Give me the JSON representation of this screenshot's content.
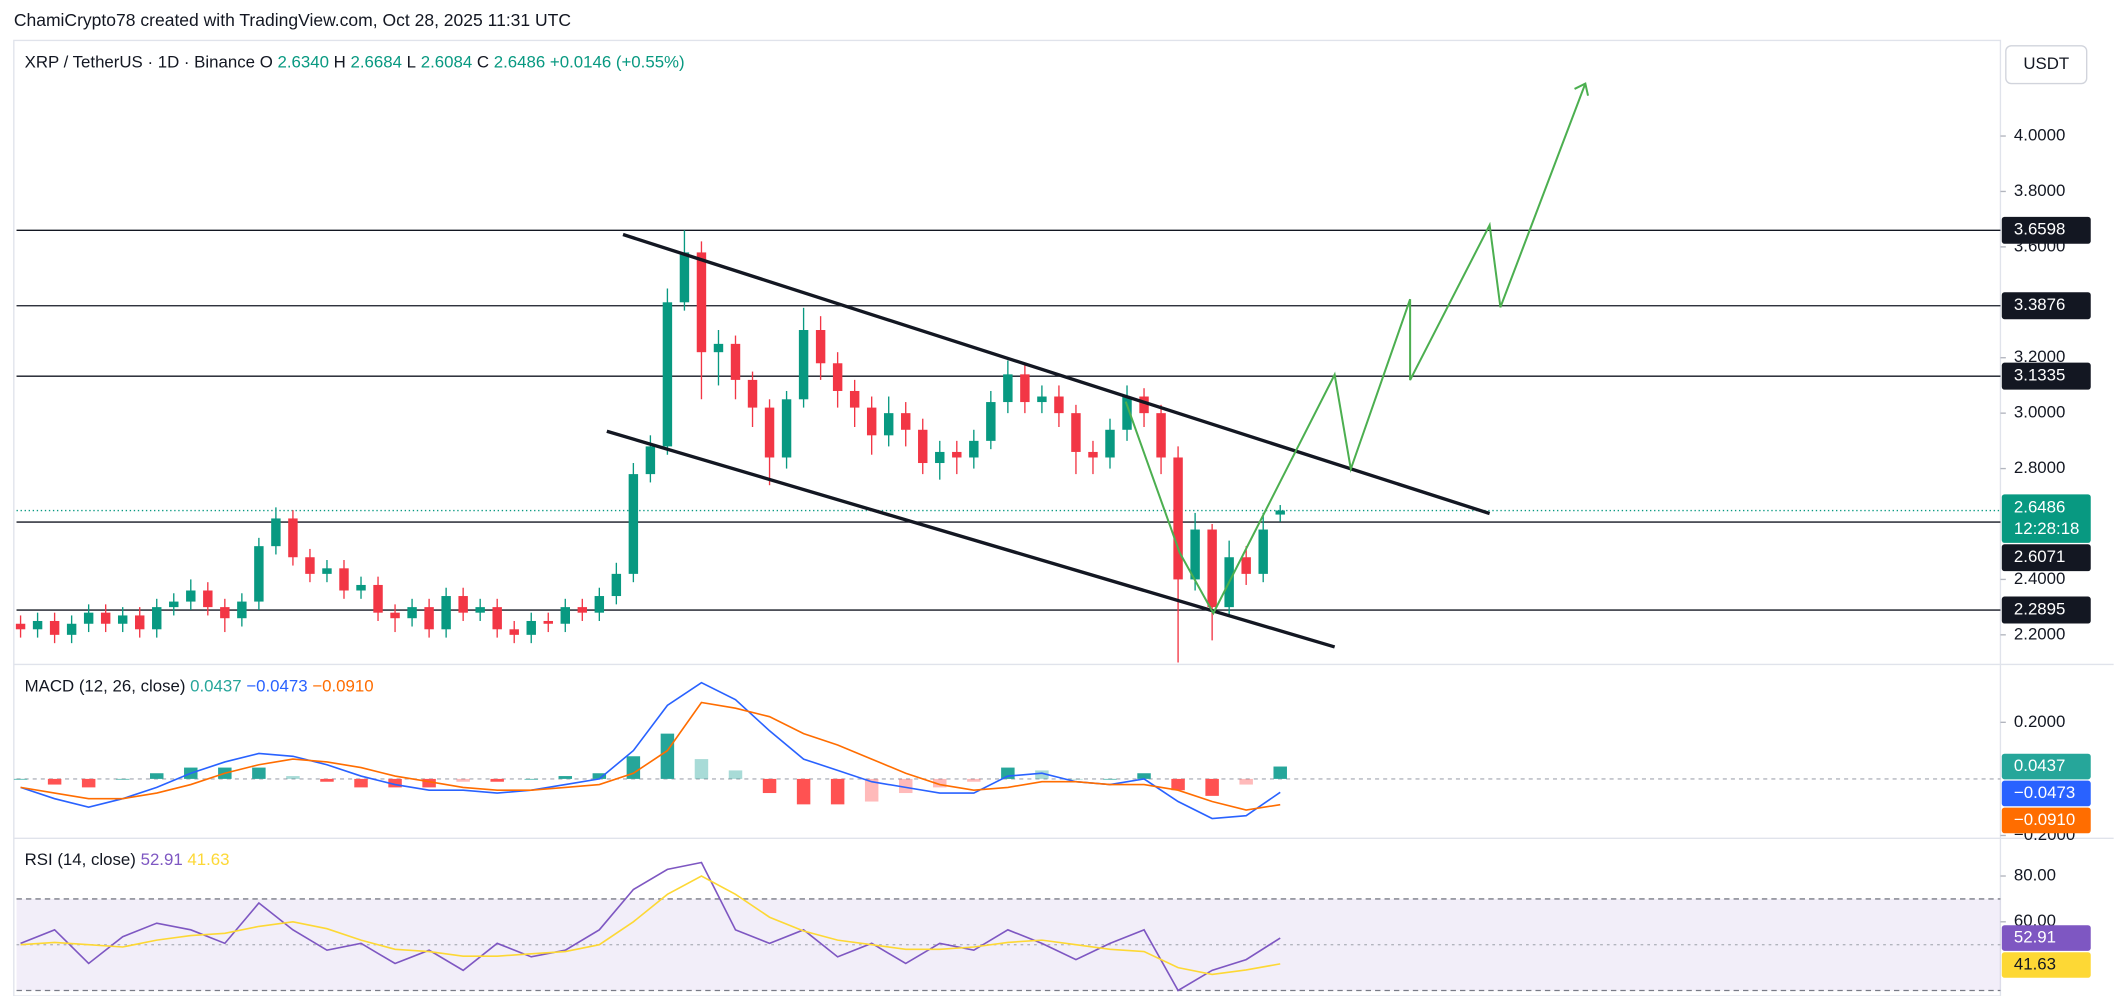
{
  "header": {
    "credit": "ChamiCrypto78 created with TradingView.com, Oct 28, 2025 11:31 UTC"
  },
  "chart_data": [
    {
      "type": "candlestick",
      "title": "XRP / TetherUS · 1D · Binance",
      "ohlc_legend": [
        {
          "label": "O",
          "text": "2.6340"
        },
        {
          "label": "H",
          "text": "2.6684"
        },
        {
          "label": "L",
          "text": "2.6084"
        },
        {
          "label": "C",
          "text": "2.6486"
        }
      ],
      "change": "+0.0146 (+0.55%)",
      "currency": "USDT",
      "up_color": "#089981",
      "down_color": "#f23645",
      "open": [
        2.24,
        2.22,
        2.25,
        2.2,
        2.24,
        2.28,
        2.24,
        2.27,
        2.22,
        2.3,
        2.32,
        2.36,
        2.3,
        2.26,
        2.32,
        2.52,
        2.62,
        2.48,
        2.42,
        2.44,
        2.36,
        2.38,
        2.28,
        2.26,
        2.3,
        2.22,
        2.34,
        2.28,
        2.3,
        2.22,
        2.2,
        2.25,
        2.24,
        2.3,
        2.28,
        2.34,
        2.42,
        2.78,
        2.88,
        3.4,
        3.58,
        3.22,
        3.25,
        3.12,
        3.02,
        2.84,
        3.05,
        3.3,
        3.18,
        3.08,
        3.02,
        2.92,
        3.0,
        2.94,
        2.82,
        2.86,
        2.84,
        2.9,
        3.04,
        3.14,
        3.04,
        3.06,
        3.0,
        2.86,
        2.84,
        2.94,
        3.06,
        3.0,
        2.84,
        2.4,
        2.58,
        2.3,
        2.48,
        2.42,
        2.634
      ],
      "high": [
        2.27,
        2.28,
        2.28,
        2.27,
        2.31,
        2.31,
        2.3,
        2.3,
        2.33,
        2.35,
        2.4,
        2.39,
        2.33,
        2.35,
        2.55,
        2.66,
        2.65,
        2.51,
        2.47,
        2.47,
        2.41,
        2.41,
        2.31,
        2.33,
        2.33,
        2.37,
        2.37,
        2.33,
        2.33,
        2.25,
        2.28,
        2.28,
        2.33,
        2.33,
        2.37,
        2.46,
        2.82,
        2.92,
        3.45,
        3.66,
        3.62,
        3.3,
        3.28,
        3.15,
        3.05,
        3.08,
        3.38,
        3.35,
        3.22,
        3.12,
        3.06,
        3.06,
        3.04,
        2.98,
        2.9,
        2.9,
        2.94,
        3.08,
        3.19,
        3.18,
        3.1,
        3.1,
        3.03,
        2.9,
        2.98,
        3.1,
        3.09,
        3.03,
        2.88,
        2.64,
        2.6,
        2.54,
        2.52,
        2.64,
        2.6684
      ],
      "low": [
        2.19,
        2.19,
        2.17,
        2.17,
        2.21,
        2.21,
        2.21,
        2.19,
        2.19,
        2.27,
        2.29,
        2.27,
        2.21,
        2.23,
        2.29,
        2.49,
        2.45,
        2.39,
        2.39,
        2.33,
        2.33,
        2.25,
        2.21,
        2.23,
        2.19,
        2.19,
        2.25,
        2.25,
        2.19,
        2.17,
        2.17,
        2.21,
        2.21,
        2.25,
        2.25,
        2.31,
        2.39,
        2.75,
        2.85,
        3.37,
        3.05,
        3.1,
        3.05,
        2.95,
        2.74,
        2.8,
        3.02,
        3.12,
        3.02,
        2.95,
        2.85,
        2.88,
        2.88,
        2.78,
        2.76,
        2.78,
        2.8,
        2.87,
        3.0,
        3.0,
        3.0,
        2.95,
        2.78,
        2.78,
        2.8,
        2.9,
        2.95,
        2.78,
        2.1,
        2.36,
        2.18,
        2.27,
        2.38,
        2.39,
        2.6084
      ],
      "close": [
        2.22,
        2.25,
        2.2,
        2.24,
        2.28,
        2.24,
        2.27,
        2.22,
        2.3,
        2.32,
        2.36,
        2.3,
        2.26,
        2.32,
        2.52,
        2.62,
        2.48,
        2.42,
        2.44,
        2.36,
        2.38,
        2.28,
        2.26,
        2.3,
        2.22,
        2.34,
        2.28,
        2.3,
        2.22,
        2.2,
        2.25,
        2.24,
        2.3,
        2.28,
        2.34,
        2.42,
        2.78,
        2.88,
        3.4,
        3.58,
        3.22,
        3.25,
        3.12,
        3.02,
        2.84,
        3.05,
        3.3,
        3.18,
        3.08,
        3.02,
        2.92,
        3.0,
        2.94,
        2.82,
        2.86,
        2.84,
        2.9,
        3.04,
        3.14,
        3.04,
        3.06,
        3.0,
        2.86,
        2.84,
        2.94,
        3.06,
        3.0,
        2.84,
        2.4,
        2.58,
        2.3,
        2.48,
        2.42,
        2.58,
        2.6486
      ],
      "ylim": [
        2.098,
        4.345
      ],
      "yticks": [
        {
          "value": 2.2,
          "label": "2.2000"
        },
        {
          "value": 2.4,
          "label": "2.4000"
        },
        {
          "value": 2.8,
          "label": "2.8000"
        },
        {
          "value": 3.0,
          "label": "3.0000"
        },
        {
          "value": 3.2,
          "label": "3.2000"
        },
        {
          "value": 3.6,
          "label": "3.6000"
        },
        {
          "value": 3.8,
          "label": "3.8000"
        },
        {
          "value": 4.0,
          "label": "4.0000"
        }
      ],
      "levels": [
        {
          "value": 3.6598,
          "label": "3.6598"
        },
        {
          "value": 3.3876,
          "label": "3.3876"
        },
        {
          "value": 3.1335,
          "label": "3.1335"
        },
        {
          "value": 2.6071,
          "label": "2.6071"
        },
        {
          "value": 2.2895,
          "label": "2.2895"
        }
      ],
      "last_price": {
        "value": 2.6486,
        "label": "2.6486",
        "countdown": "12:28:18"
      }
    },
    {
      "type": "macd",
      "title": "MACD (12, 26, close)",
      "ylim": [
        -0.21,
        0.395
      ],
      "yticks": [
        {
          "value": 0.2,
          "label": "0.2000"
        },
        {
          "value": -0.2,
          "label": "−0.2000"
        }
      ],
      "histogram": {
        "values": [
          0,
          -0.02,
          -0.03,
          0,
          0.02,
          0.04,
          0.04,
          0.04,
          0.01,
          -0.01,
          -0.03,
          -0.03,
          -0.03,
          -0.01,
          -0.01,
          0,
          0.01,
          0.02,
          0.08,
          0.16,
          0.07,
          0.03,
          -0.05,
          -0.09,
          -0.09,
          -0.08,
          -0.05,
          -0.03,
          -0.01,
          0.04,
          0.03,
          0,
          0,
          0.02,
          -0.04,
          -0.06,
          -0.02,
          0.0437
        ],
        "value_label": "0.0437",
        "color": "#26a69a",
        "down_color": "#ff5252"
      },
      "series": [
        {
          "color": "#2962ff",
          "values": [
            -0.03,
            -0.07,
            -0.1,
            -0.07,
            -0.03,
            0.02,
            0.06,
            0.09,
            0.08,
            0.05,
            0.01,
            -0.02,
            -0.04,
            -0.04,
            -0.05,
            -0.04,
            -0.02,
            0.0,
            0.1,
            0.26,
            0.34,
            0.28,
            0.17,
            0.07,
            0.03,
            -0.01,
            -0.03,
            -0.05,
            -0.05,
            0.01,
            0.02,
            -0.01,
            -0.02,
            0.0,
            -0.08,
            -0.14,
            -0.13,
            -0.0473
          ],
          "value_label": "−0.0473"
        },
        {
          "color": "#ff6d00",
          "values": [
            -0.03,
            -0.05,
            -0.07,
            -0.07,
            -0.05,
            -0.02,
            0.02,
            0.05,
            0.07,
            0.06,
            0.04,
            0.01,
            -0.01,
            -0.03,
            -0.04,
            -0.04,
            -0.03,
            -0.02,
            0.02,
            0.1,
            0.27,
            0.25,
            0.22,
            0.16,
            0.12,
            0.07,
            0.02,
            -0.02,
            -0.04,
            -0.03,
            -0.01,
            -0.01,
            -0.02,
            -0.02,
            -0.04,
            -0.08,
            -0.11,
            -0.091
          ],
          "value_label": "−0.0910"
        }
      ]
    },
    {
      "type": "line",
      "title": "RSI (14, close)",
      "ylim": [
        27.6,
        94.7
      ],
      "yticks": [
        {
          "value": 80,
          "label": "80.00"
        },
        {
          "value": 60,
          "label": "60.00"
        }
      ],
      "band": [
        30,
        70
      ],
      "midline": 50,
      "band_color": "#7e57c2",
      "series": [
        {
          "color": "#7e57c2",
          "values": [
            50.6,
            56.5,
            41.8,
            53.5,
            59.4,
            56.5,
            50.6,
            68.2,
            56.5,
            47.6,
            50.6,
            41.8,
            47.6,
            38.8,
            50.6,
            44.7,
            47.6,
            56.5,
            74.1,
            82.9,
            85.9,
            56.5,
            50.6,
            56.5,
            44.7,
            50.6,
            41.8,
            50.6,
            47.6,
            56.5,
            50.6,
            43.5,
            50.6,
            56.5,
            30.0,
            38.8,
            43.5,
            52.91
          ],
          "value_label": "52.91"
        },
        {
          "color": "#fdd835",
          "values": [
            50,
            51,
            50,
            49,
            52,
            54,
            55,
            58,
            60,
            57,
            52,
            48,
            47,
            45,
            45,
            46,
            47,
            50,
            60,
            72,
            80,
            72,
            62,
            56,
            52,
            50,
            48,
            48,
            49,
            51,
            52,
            50,
            48,
            47,
            40,
            37,
            39,
            41.63
          ],
          "value_label": "41.63"
        }
      ]
    }
  ]
}
